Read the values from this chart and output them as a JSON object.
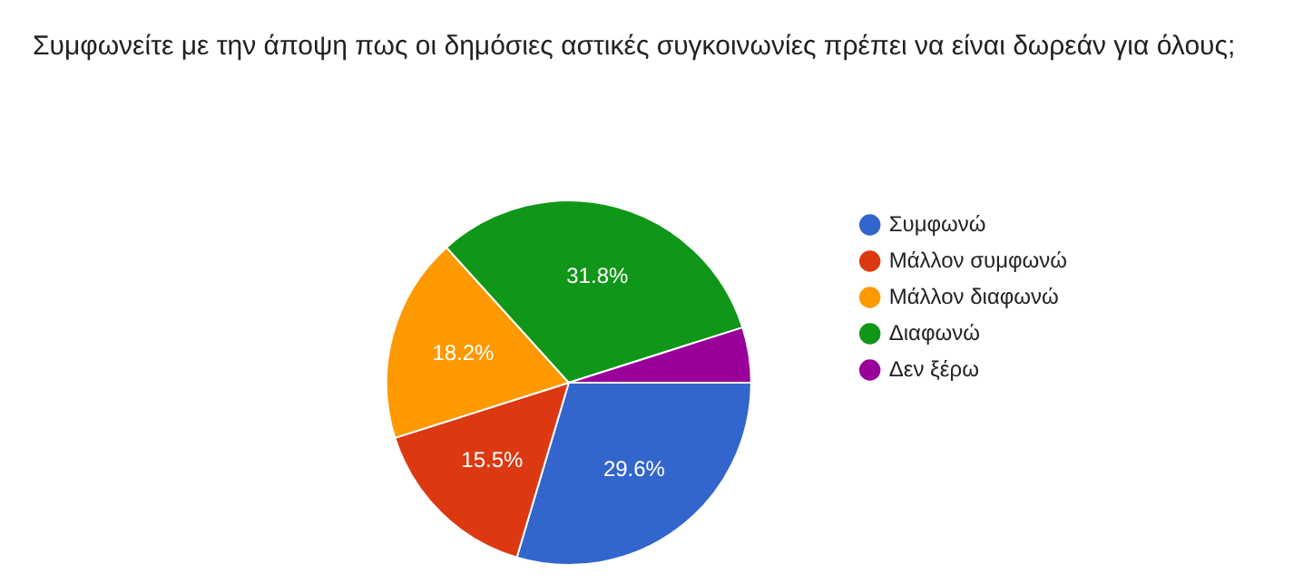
{
  "chart_data": {
    "type": "pie",
    "title": "Συμφωνείτε με την άποψη πως οι δημόσιες αστικές συγκοινωνίες πρέπει να είναι δωρεάν για όλους;",
    "categories": [
      "Συμφωνώ",
      "Μάλλον συμφωνώ",
      "Μάλλον διαφωνώ",
      "Διαφωνώ",
      "Δεν ξέρω"
    ],
    "values": [
      29.6,
      15.5,
      18.2,
      31.8,
      4.9
    ],
    "colors": [
      "#3366cc",
      "#dc3912",
      "#ff9900",
      "#109618",
      "#990099"
    ],
    "value_labels": [
      "29.6%",
      "15.5%",
      "18.2%",
      "31.8%",
      null
    ],
    "legend": "right"
  }
}
